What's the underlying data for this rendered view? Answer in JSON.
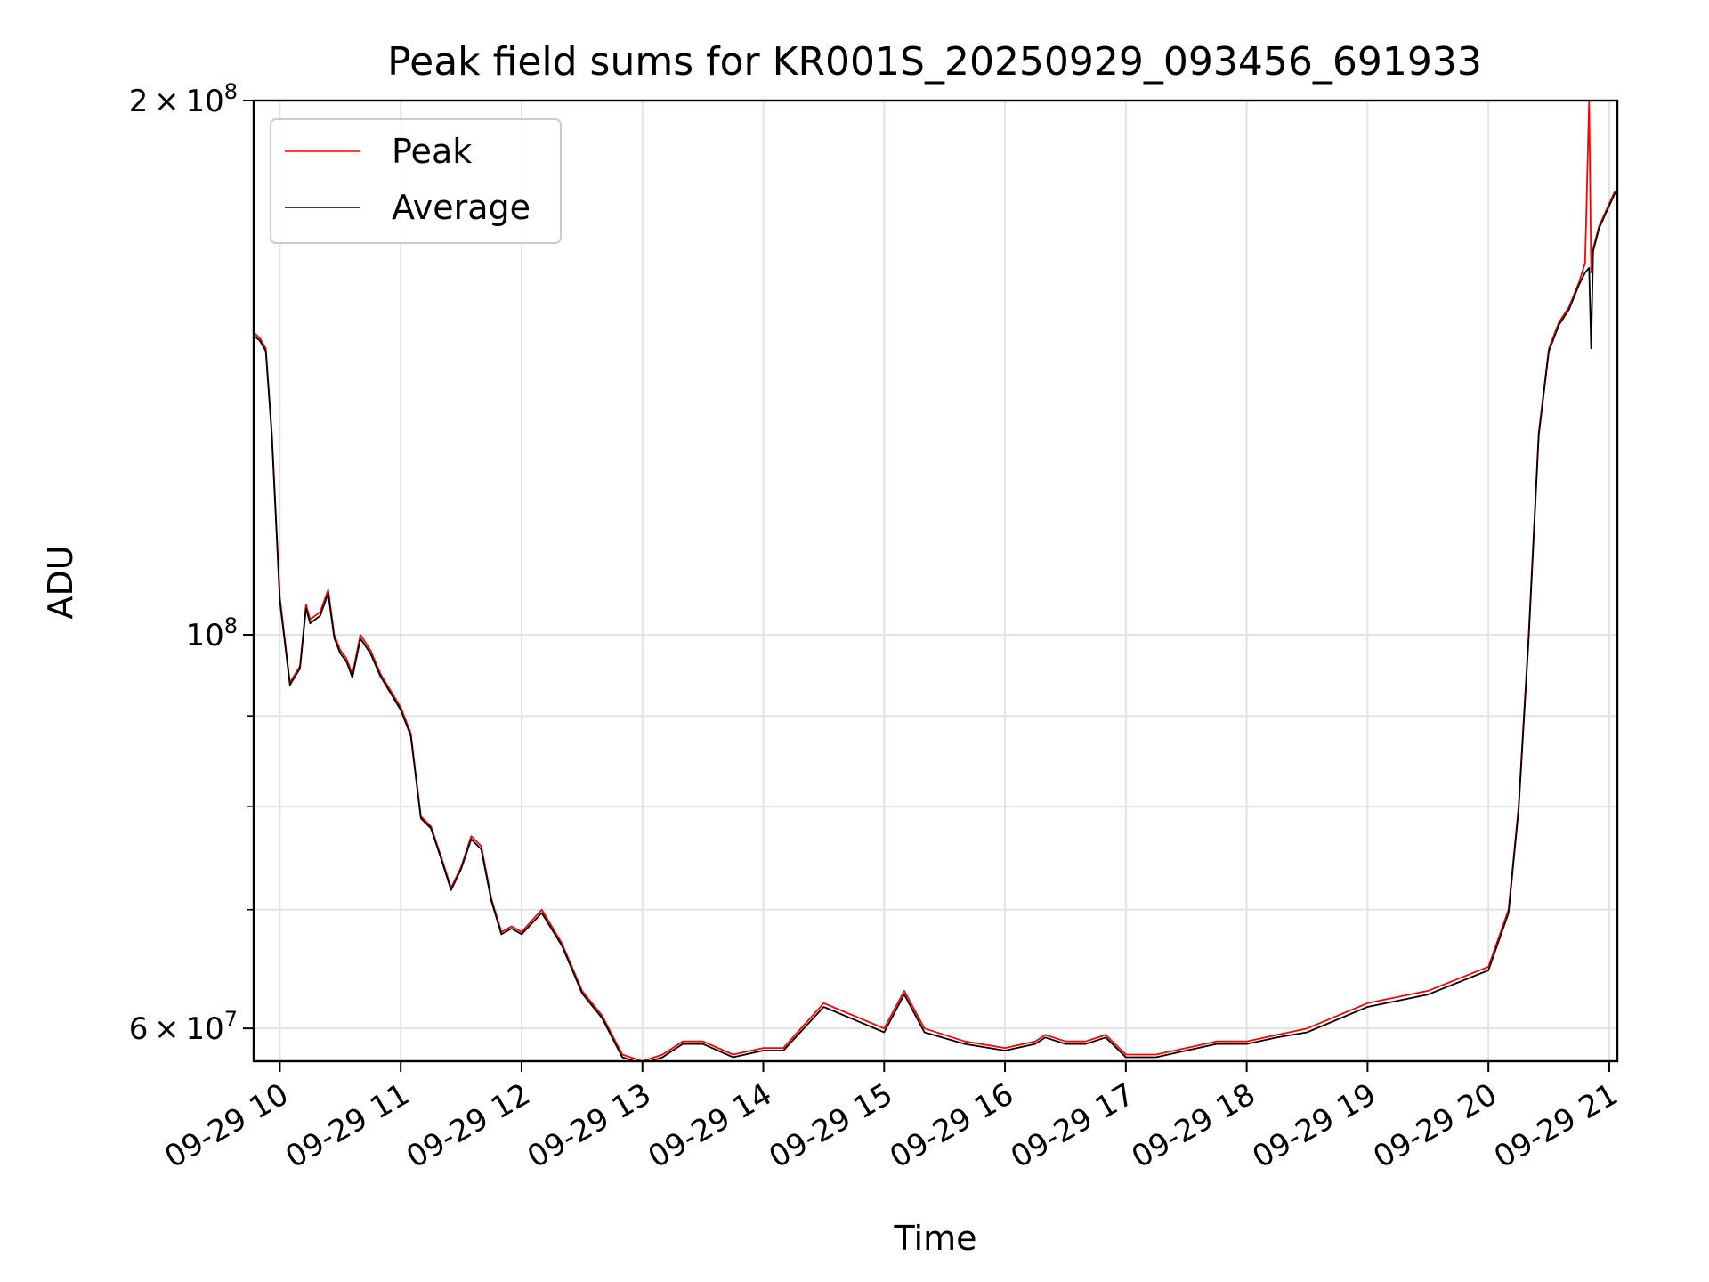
{
  "chart_data": {
    "type": "line",
    "title": "Peak field sums for KR001S_20250929_093456_691933",
    "xlabel": "Time",
    "ylabel": "ADU",
    "x_unit": "date-hour",
    "xlim": [
      "09-29 09:47",
      "09-29 21:04"
    ],
    "ylim": [
      57500000,
      200000000
    ],
    "yscale": "log",
    "grid": true,
    "legend": "top-left",
    "x_ticks": [
      "09-29 10",
      "09-29 11",
      "09-29 12",
      "09-29 13",
      "09-29 14",
      "09-29 15",
      "09-29 16",
      "09-29 17",
      "09-29 18",
      "09-29 19",
      "09-29 20",
      "09-29 21"
    ],
    "y_tick_labels": [
      {
        "value": 200000000,
        "mantissa": "2",
        "times": "×",
        "base": "10",
        "exp": "8"
      },
      {
        "value": 100000000,
        "mantissa": "",
        "times": "",
        "base": "10",
        "exp": "8"
      },
      {
        "value": 60000000,
        "mantissa": "6",
        "times": "×",
        "base": "10",
        "exp": "7"
      }
    ],
    "y_minor_ticks": [
      70000000,
      80000000,
      90000000
    ],
    "series": [
      {
        "name": "Peak",
        "color": "#ff0000",
        "x": [
          "09-29 09:47",
          "09-29 09:50",
          "09-29 09:53",
          "09-29 09:56",
          "09-29 10:00",
          "09-29 10:05",
          "09-29 10:10",
          "09-29 10:13",
          "09-29 10:15",
          "09-29 10:20",
          "09-29 10:24",
          "09-29 10:27",
          "09-29 10:30",
          "09-29 10:33",
          "09-29 10:36",
          "09-29 10:40",
          "09-29 10:45",
          "09-29 10:50",
          "09-29 10:55",
          "09-29 11:00",
          "09-29 11:05",
          "09-29 11:10",
          "09-29 11:15",
          "09-29 11:20",
          "09-29 11:25",
          "09-29 11:30",
          "09-29 11:35",
          "09-29 11:40",
          "09-29 11:45",
          "09-29 11:50",
          "09-29 11:55",
          "09-29 12:00",
          "09-29 12:10",
          "09-29 12:20",
          "09-29 12:25",
          "09-29 12:30",
          "09-29 12:40",
          "09-29 12:50",
          "09-29 13:00",
          "09-29 13:10",
          "09-29 13:15",
          "09-29 13:20",
          "09-29 13:30",
          "09-29 13:45",
          "09-29 14:00",
          "09-29 14:10",
          "09-29 14:30",
          "09-29 15:00",
          "09-29 15:10",
          "09-29 15:20",
          "09-29 15:40",
          "09-29 16:00",
          "09-29 16:15",
          "09-29 16:20",
          "09-29 16:30",
          "09-29 16:40",
          "09-29 16:50",
          "09-29 17:00",
          "09-29 17:15",
          "09-29 17:30",
          "09-29 17:45",
          "09-29 18:00",
          "09-29 18:15",
          "09-29 18:30",
          "09-29 19:00",
          "09-29 19:30",
          "09-29 20:00",
          "09-29 20:10",
          "09-29 20:15",
          "09-29 20:20",
          "09-29 20:25",
          "09-29 20:30",
          "09-29 20:35",
          "09-29 20:40",
          "09-29 20:45",
          "09-29 20:48",
          "09-29 20:50",
          "09-29 20:51",
          "09-29 20:52",
          "09-29 20:55",
          "09-29 21:00",
          "09-29 21:03"
        ],
        "values": [
          148000000,
          147000000,
          145000000,
          130000000,
          105000000,
          94000000,
          96000000,
          104000000,
          102000000,
          103000000,
          106000000,
          100000000,
          98000000,
          97000000,
          95000000,
          100000000,
          98000000,
          95000000,
          93000000,
          91000000,
          88000000,
          79000000,
          78000000,
          75000000,
          72000000,
          74000000,
          77000000,
          76000000,
          71000000,
          68000000,
          68500000,
          68000000,
          70000000,
          67000000,
          65000000,
          63000000,
          61000000,
          58000000,
          57500000,
          58000000,
          58500000,
          59000000,
          59000000,
          58000000,
          58500000,
          58500000,
          62000000,
          60000000,
          63000000,
          60000000,
          59000000,
          58500000,
          59000000,
          59500000,
          59000000,
          59000000,
          59500000,
          58000000,
          58000000,
          58500000,
          59000000,
          59000000,
          59500000,
          60000000,
          62000000,
          63000000,
          65000000,
          70000000,
          80000000,
          100000000,
          130000000,
          145000000,
          150000000,
          153000000,
          158000000,
          162000000,
          200000000,
          160000000,
          165000000,
          170000000,
          175000000,
          178000000
        ]
      },
      {
        "name": "Average",
        "color": "#000000",
        "x": [
          "09-29 09:47",
          "09-29 09:50",
          "09-29 09:53",
          "09-29 09:56",
          "09-29 10:00",
          "09-29 10:05",
          "09-29 10:10",
          "09-29 10:13",
          "09-29 10:15",
          "09-29 10:20",
          "09-29 10:24",
          "09-29 10:27",
          "09-29 10:30",
          "09-29 10:33",
          "09-29 10:36",
          "09-29 10:40",
          "09-29 10:45",
          "09-29 10:50",
          "09-29 10:55",
          "09-29 11:00",
          "09-29 11:05",
          "09-29 11:10",
          "09-29 11:15",
          "09-29 11:20",
          "09-29 11:25",
          "09-29 11:30",
          "09-29 11:35",
          "09-29 11:40",
          "09-29 11:45",
          "09-29 11:50",
          "09-29 11:55",
          "09-29 12:00",
          "09-29 12:10",
          "09-29 12:20",
          "09-29 12:25",
          "09-29 12:30",
          "09-29 12:40",
          "09-29 12:50",
          "09-29 13:00",
          "09-29 13:10",
          "09-29 13:15",
          "09-29 13:20",
          "09-29 13:30",
          "09-29 13:45",
          "09-29 14:00",
          "09-29 14:10",
          "09-29 14:30",
          "09-29 15:00",
          "09-29 15:10",
          "09-29 15:20",
          "09-29 15:40",
          "09-29 16:00",
          "09-29 16:15",
          "09-29 16:20",
          "09-29 16:30",
          "09-29 16:40",
          "09-29 16:50",
          "09-29 17:00",
          "09-29 17:15",
          "09-29 17:30",
          "09-29 17:45",
          "09-29 18:00",
          "09-29 18:15",
          "09-29 18:30",
          "09-29 19:00",
          "09-29 19:30",
          "09-29 20:00",
          "09-29 20:10",
          "09-29 20:15",
          "09-29 20:20",
          "09-29 20:25",
          "09-29 20:30",
          "09-29 20:35",
          "09-29 20:40",
          "09-29 20:45",
          "09-29 20:48",
          "09-29 20:50",
          "09-29 20:51",
          "09-29 20:52",
          "09-29 20:55",
          "09-29 21:00",
          "09-29 21:03"
        ],
        "values": [
          147500000,
          146500000,
          144500000,
          129500000,
          104500000,
          93700000,
          95700000,
          103500000,
          101500000,
          102500000,
          105500000,
          99600000,
          97600000,
          96600000,
          94600000,
          99500000,
          97600000,
          94700000,
          92700000,
          90700000,
          87700000,
          78800000,
          77800000,
          74800000,
          71800000,
          73800000,
          76700000,
          75700000,
          70800000,
          67800000,
          68300000,
          67800000,
          69700000,
          66800000,
          64800000,
          62800000,
          60800000,
          57800000,
          57300000,
          57800000,
          58300000,
          58800000,
          58800000,
          57800000,
          58300000,
          58300000,
          61700000,
          59700000,
          62700000,
          59700000,
          58800000,
          58300000,
          58800000,
          59300000,
          58800000,
          58800000,
          59300000,
          57800000,
          57800000,
          58300000,
          58800000,
          58800000,
          59300000,
          59700000,
          61700000,
          62700000,
          64700000,
          69700000,
          79700000,
          99500000,
          129500000,
          144500000,
          149500000,
          152500000,
          157500000,
          160000000,
          161000000,
          145000000,
          164500000,
          169500000,
          174500000,
          177500000
        ]
      }
    ]
  }
}
